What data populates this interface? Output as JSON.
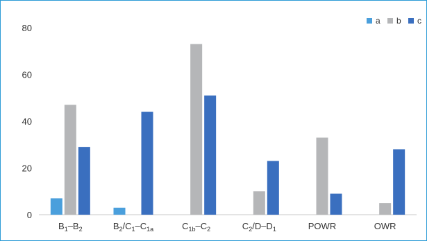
{
  "chart_data": {
    "type": "bar",
    "title": "",
    "xlabel": "",
    "ylabel": "",
    "ylim": [
      0,
      80
    ],
    "yticks": [
      0,
      20,
      40,
      60,
      80
    ],
    "grid": false,
    "legend_position": "top-right",
    "categories": [
      {
        "base": "B",
        "sub1": "1",
        "mid": "–B",
        "sub2": "2",
        "rest": "",
        "sub3": ""
      },
      {
        "base": "B",
        "sub1": "2",
        "mid": "/C",
        "sub2": "1",
        "rest": "–C",
        "sub3": "1a"
      },
      {
        "base": "C",
        "sub1": "1b",
        "mid": "–C",
        "sub2": "2",
        "rest": "",
        "sub3": ""
      },
      {
        "base": "C",
        "sub1": "2",
        "mid": "/D–D",
        "sub2": "1",
        "rest": "",
        "sub3": ""
      },
      {
        "base": "POWR",
        "sub1": "",
        "mid": "",
        "sub2": "",
        "rest": "",
        "sub3": ""
      },
      {
        "base": "OWR",
        "sub1": "",
        "mid": "",
        "sub2": "",
        "rest": "",
        "sub3": ""
      }
    ],
    "series": [
      {
        "name": "a",
        "color": "#4a9fdc",
        "values": [
          7,
          3,
          0,
          0,
          0,
          0
        ]
      },
      {
        "name": "b",
        "color": "#b5b6b8",
        "values": [
          47,
          0,
          73,
          10,
          33,
          5
        ]
      },
      {
        "name": "c",
        "color": "#3a6fbf",
        "values": [
          29,
          44,
          51,
          23,
          9,
          28
        ]
      }
    ]
  }
}
